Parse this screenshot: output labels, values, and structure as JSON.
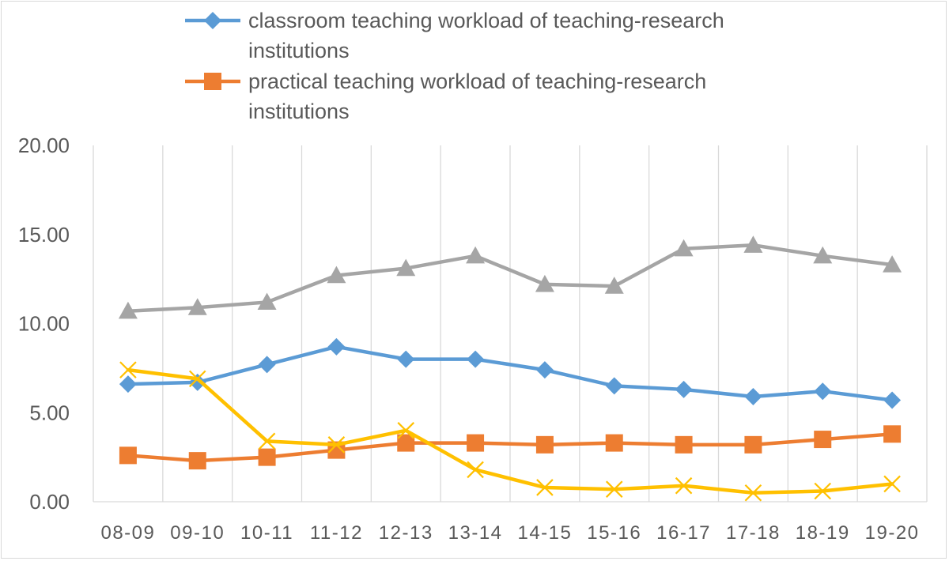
{
  "chart_data": {
    "type": "line",
    "categories": [
      "08-09",
      "09-10",
      "10-11",
      "11-12",
      "12-13",
      "13-14",
      "14-15",
      "15-16",
      "16-17",
      "17-18",
      "18-19",
      "19-20"
    ],
    "y_ticks": [
      "0.00",
      "5.00",
      "10.00",
      "15.00",
      "20.00"
    ],
    "ylim": [
      0,
      20
    ],
    "grid": "vertical",
    "legend_position": "top",
    "series": [
      {
        "name": "classroom teaching workload of teaching-research institutions",
        "legend_lines": [
          "classroom teaching workload of teaching-research",
          "institutions"
        ],
        "marker": "diamond",
        "color": "#5B9BD5",
        "values": [
          6.6,
          6.7,
          7.7,
          8.7,
          8.0,
          8.0,
          7.4,
          6.5,
          6.3,
          5.9,
          6.2,
          5.7
        ]
      },
      {
        "name": "practical teaching workload of teaching-research institutions",
        "legend_lines": [
          "practical teaching workload of teaching-research",
          "institutions"
        ],
        "marker": "square",
        "color": "#ED7D31",
        "values": [
          2.6,
          2.3,
          2.5,
          2.9,
          3.3,
          3.3,
          3.2,
          3.3,
          3.2,
          3.2,
          3.5,
          3.8
        ]
      },
      {
        "name": "",
        "marker": "triangle",
        "color": "#A5A5A5",
        "values": [
          10.7,
          10.9,
          11.2,
          12.7,
          13.1,
          13.8,
          12.2,
          12.1,
          14.2,
          14.4,
          13.8,
          13.3
        ]
      },
      {
        "name": "",
        "marker": "x",
        "color": "#FFC000",
        "values": [
          7.4,
          6.9,
          3.4,
          3.2,
          4.0,
          1.8,
          0.8,
          0.7,
          0.9,
          0.5,
          0.6,
          1.0
        ]
      }
    ]
  }
}
